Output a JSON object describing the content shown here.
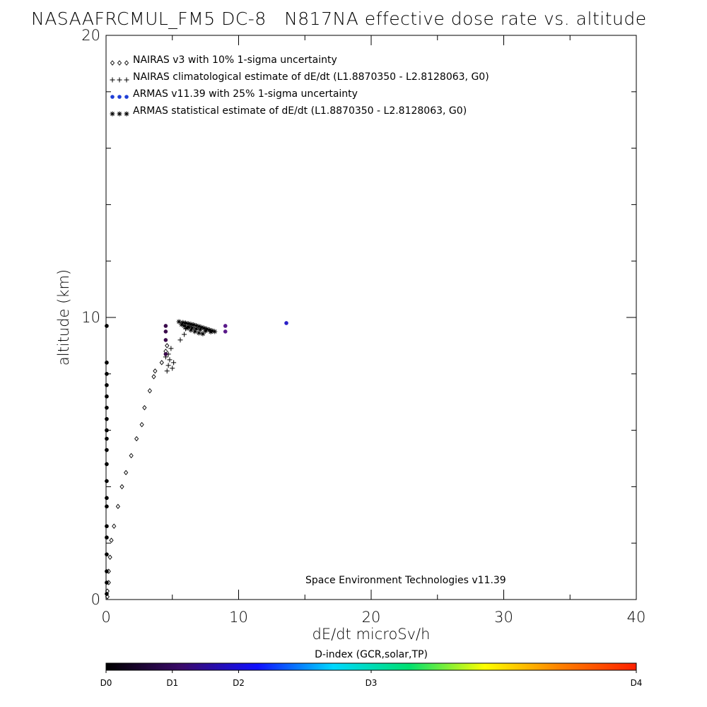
{
  "chart_data": {
    "type": "scatter",
    "title": "NASAAFRCMUL_FM5 DC-8   N817NA effective dose rate vs. altitude",
    "xlabel": "dE/dt microSv/h",
    "ylabel": "altitude (km)",
    "xlim": [
      0,
      40
    ],
    "ylim": [
      0,
      20
    ],
    "x_ticks": [
      "0",
      "10",
      "20",
      "30",
      "40"
    ],
    "y_ticks": [
      "0",
      "10",
      "20"
    ],
    "grid": false,
    "legend_position": "top-left",
    "legend": [
      {
        "symbol": "◇◇◇",
        "label": "NAIRAS v3 with 10% 1-sigma uncertainty"
      },
      {
        "symbol": "+++",
        "label": "NAIRAS climatological estimate of dE/dt (L1.8870350 - L2.8128063, G0)"
      },
      {
        "symbol": "•••",
        "label": "ARMAS v11.39 with 25% 1-sigma uncertainty",
        "color": "#1f3fd6"
      },
      {
        "symbol": "***",
        "label": "ARMAS statistical estimate of dE/dt (L1.8870350 - L2.8128063, G0)"
      }
    ],
    "annotation": "Space Environment Technologies v11.39",
    "series": [
      {
        "name": "NAIRAS v3 with 10% 1-sigma uncertainty",
        "marker": "diamond",
        "color": "#000000",
        "points": [
          [
            0.1,
            0.1
          ],
          [
            0.1,
            0.3
          ],
          [
            0.2,
            0.6
          ],
          [
            0.2,
            1.0
          ],
          [
            0.3,
            1.5
          ],
          [
            0.4,
            2.1
          ],
          [
            0.6,
            2.6
          ],
          [
            0.9,
            3.3
          ],
          [
            1.2,
            4.0
          ],
          [
            1.5,
            4.5
          ],
          [
            1.9,
            5.1
          ],
          [
            2.3,
            5.7
          ],
          [
            2.7,
            6.2
          ],
          [
            2.9,
            6.8
          ],
          [
            3.3,
            7.4
          ],
          [
            3.6,
            7.9
          ],
          [
            3.7,
            8.1
          ],
          [
            4.2,
            8.4
          ],
          [
            4.5,
            8.8
          ],
          [
            4.6,
            9.0
          ]
        ]
      },
      {
        "name": "NAIRAS climatological estimate of dE/dt (L1.8870350 - L2.8128063, G0)",
        "marker": "plus",
        "color": "#000000",
        "points": [
          [
            4.6,
            8.1
          ],
          [
            4.7,
            8.3
          ],
          [
            4.8,
            8.5
          ],
          [
            4.7,
            8.7
          ],
          [
            4.9,
            8.9
          ],
          [
            5.0,
            8.2
          ],
          [
            5.1,
            8.4
          ],
          [
            4.5,
            8.6
          ],
          [
            5.6,
            9.2
          ],
          [
            5.9,
            9.4
          ],
          [
            6.0,
            9.6
          ],
          [
            6.3,
            9.7
          ]
        ]
      },
      {
        "name": "ARMAS v11.39 with 25% 1-sigma uncertainty",
        "marker": "dot",
        "points": [
          [
            0.05,
            0.2
          ],
          [
            0.05,
            0.6
          ],
          [
            0.05,
            1.0
          ],
          [
            0.05,
            1.6
          ],
          [
            0.05,
            2.2
          ],
          [
            0.05,
            2.6
          ],
          [
            0.05,
            3.3
          ],
          [
            0.05,
            3.6
          ],
          [
            0.05,
            4.2
          ],
          [
            0.05,
            4.8
          ],
          [
            0.05,
            5.3
          ],
          [
            0.05,
            5.7
          ],
          [
            0.05,
            6.0
          ],
          [
            0.05,
            6.4
          ],
          [
            0.05,
            6.8
          ],
          [
            0.05,
            7.2
          ],
          [
            0.05,
            7.6
          ],
          [
            0.05,
            8.0
          ],
          [
            0.05,
            8.4
          ],
          [
            0.05,
            9.7
          ],
          [
            4.5,
            8.7
          ],
          [
            4.5,
            9.2
          ],
          [
            4.5,
            9.5
          ],
          [
            4.5,
            9.7
          ],
          [
            9.0,
            9.5
          ],
          [
            9.0,
            9.7
          ],
          [
            13.6,
            9.8
          ]
        ],
        "colors": [
          "#000000",
          "#000000",
          "#000000",
          "#000000",
          "#000000",
          "#000000",
          "#000000",
          "#000000",
          "#000000",
          "#000000",
          "#000000",
          "#000000",
          "#000000",
          "#000000",
          "#000000",
          "#000000",
          "#000000",
          "#000000",
          "#000000",
          "#000000",
          "#3a0a4a",
          "#3a0a4a",
          "#3a0a4a",
          "#3a0a4a",
          "#5a1a8a",
          "#5a1a8a",
          "#2a20c8"
        ]
      },
      {
        "name": "ARMAS statistical estimate of dE/dt (L1.8870350 - L2.8128063, G0)",
        "marker": "asterisk",
        "color": "#000000",
        "points": [
          [
            5.5,
            9.85
          ],
          [
            5.8,
            9.82
          ],
          [
            6.0,
            9.8
          ],
          [
            6.2,
            9.78
          ],
          [
            6.4,
            9.76
          ],
          [
            6.6,
            9.74
          ],
          [
            6.8,
            9.71
          ],
          [
            7.0,
            9.68
          ],
          [
            7.2,
            9.65
          ],
          [
            7.4,
            9.62
          ],
          [
            7.6,
            9.59
          ],
          [
            7.8,
            9.56
          ],
          [
            8.0,
            9.53
          ],
          [
            8.2,
            9.5
          ],
          [
            6.1,
            9.62
          ],
          [
            6.4,
            9.55
          ],
          [
            6.7,
            9.5
          ],
          [
            7.0,
            9.45
          ],
          [
            7.3,
            9.42
          ],
          [
            5.9,
            9.7
          ],
          [
            6.2,
            9.66
          ],
          [
            6.5,
            9.63
          ],
          [
            6.8,
            9.6
          ],
          [
            7.1,
            9.57
          ],
          [
            7.5,
            9.52
          ],
          [
            7.9,
            9.49
          ],
          [
            5.7,
            9.75
          ]
        ]
      }
    ]
  },
  "colorbar": {
    "title": "D-index (GCR,solar,TP)",
    "labels": [
      "D0",
      "D1",
      "D2",
      "D3",
      "D4"
    ],
    "positions": [
      0,
      0.125,
      0.25,
      0.5,
      1.0
    ],
    "stops": [
      "#000000",
      "#3a0a6a",
      "#1010ff",
      "#00d8ff",
      "#00e070",
      "#ffff00",
      "#ff8000",
      "#ff2000"
    ]
  }
}
